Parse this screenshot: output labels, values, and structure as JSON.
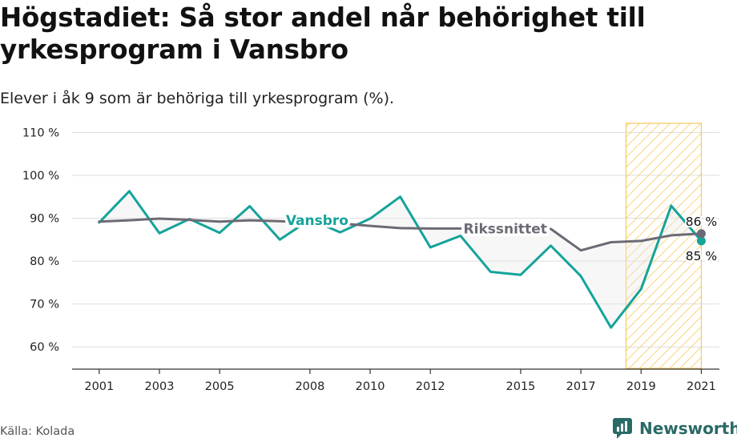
{
  "title": "Högstadiet: Så stor andel når behörighet till yrkesprogram i Vansbro",
  "subtitle": "Elever i åk 9 som är behöriga till yrkesprogram (%).",
  "source": "Källa: Kolada",
  "brand": {
    "name": "Newsworthy",
    "icon": "newsworthy-logo-icon",
    "color": "#2a6a66"
  },
  "chart_data": {
    "type": "line",
    "x": [
      2001,
      2002,
      2003,
      2004,
      2005,
      2006,
      2007,
      2008,
      2009,
      2010,
      2011,
      2012,
      2013,
      2014,
      2015,
      2016,
      2017,
      2018,
      2019,
      2020,
      2021
    ],
    "series": [
      {
        "name": "Vansbro",
        "color": "#15a39a",
        "values": [
          89.0,
          96.3,
          86.5,
          89.8,
          86.6,
          92.8,
          85.0,
          89.7,
          86.7,
          89.9,
          95.0,
          83.2,
          85.9,
          77.5,
          76.8,
          83.6,
          76.5,
          64.5,
          73.5,
          92.9,
          84.7
        ],
        "end_label": "85 %"
      },
      {
        "name": "Rikssnittet",
        "color": "#6d6a75",
        "values": [
          89.2,
          89.5,
          89.9,
          89.6,
          89.2,
          89.5,
          89.3,
          89.1,
          88.8,
          88.2,
          87.7,
          87.6,
          87.6,
          null,
          null,
          87.5,
          82.5,
          84.4,
          84.7,
          86.0,
          86.4
        ],
        "end_label": "86 %"
      }
    ],
    "x_ticks": [
      "2001",
      "2003",
      "2005",
      "2008",
      "2010",
      "2012",
      "2015",
      "2017",
      "2019",
      "2021"
    ],
    "y_ticks": [
      "60 %",
      "70 %",
      "80 %",
      "90 %",
      "100 %",
      "110 %"
    ],
    "y_tick_values": [
      60,
      70,
      80,
      90,
      100,
      110
    ],
    "ylim": [
      55,
      111
    ],
    "xlim": [
      2000.1,
      2021.6
    ],
    "highlight_range": [
      2018.5,
      2021
    ],
    "highlight_color": "#f7c95c",
    "gap_fill_color": "#e8e8e8",
    "grid": true
  }
}
